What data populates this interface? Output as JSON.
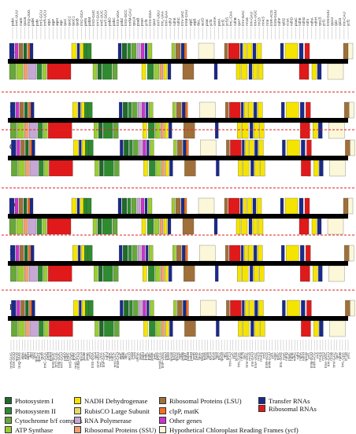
{
  "panels": [
    {
      "letter": "A"
    },
    {
      "letter": "B"
    },
    {
      "letter": "C"
    },
    {
      "letter": "D"
    },
    {
      "letter": "E"
    },
    {
      "letter": "F"
    }
  ],
  "top_gene_labels": [
    "psbA",
    "trnK-UUU",
    "matK",
    "rps16",
    "trnQ-UUG",
    "psbK",
    "psbI",
    "trnS-GCU",
    "trnR-UCU",
    "atpA",
    "atpF",
    "atpH",
    "atpI",
    "rps2",
    "rpoC2",
    "rpoC1",
    "rpoB",
    "trnC-GCA",
    "petN",
    "psbM",
    "trnD-GUC",
    "trnY-GUA",
    "trnE-UUC",
    "trnT-GGU",
    "psbD",
    "psbC",
    "trnS-UGA",
    "psbZ",
    "trnG-GCC",
    "trnfM-CAU",
    "rps14",
    "psaB",
    "psaA",
    "ycf3",
    "trnS-GGA",
    "rps4",
    "trnT-UGU",
    "trnL-UAA",
    "trnF-GAA",
    "ndhJ",
    "ndhK",
    "ndhC",
    "trnV-UAC",
    "trnM-CAU",
    "atpE",
    "atpB",
    "rbcL",
    "accD",
    "psaI",
    "ycf4",
    "cemA",
    "petA",
    "ycf2",
    "ycf15",
    "trnL-CAA",
    "ndhB",
    "rps7",
    "trnV-GAC",
    "rrn16",
    "trnI-GAU",
    "trnA-UGC",
    "rrn23",
    "rrn4.5",
    "rrn5",
    "trnR-ACG",
    "trnN-GUU",
    "ndhF",
    "rpl32",
    "ccsA",
    "ndhD",
    "psaC",
    "ndhE",
    "ndhG",
    "ndhI",
    "ndhA",
    "ndhH",
    "rps15",
    "ycf1",
    "trnN-GUU",
    "rps12",
    "rpl2",
    "rpl23",
    "trnI-CAU",
    "ycf2"
  ],
  "bottom_gene_labels": [
    "trnH-GUG",
    "trnK-UUU",
    "rps16",
    "trnQ-UUG",
    "atpA",
    "atpF",
    "atpH",
    "atpI",
    "rps2",
    "rpoC2",
    "rpoC1",
    "rpoB",
    "trnC-GCA",
    "petN",
    "psbM",
    "trnD-GUC",
    "trnY-GUA",
    "trnE-UUC",
    "trnT-GGU",
    "psbD",
    "psbC",
    "trnS-UGA",
    "psbZ",
    "trnG-GCC",
    "trnfM-CAU",
    "rps14",
    "psaB",
    "psaA",
    "ycf3",
    "trnS-GGA",
    "rps4",
    "trnT-UGU",
    "trnL-UAA",
    "trnF-GAA",
    "ndhJ",
    "ndhK",
    "ndhC",
    "trnV-UAC",
    "trnM-CAU",
    "atpE",
    "atpB",
    "rbcL",
    "accD",
    "psaI",
    "ycf4",
    "cemA",
    "petA",
    "psbJ",
    "psbL",
    "psbF",
    "psbE",
    "petL",
    "petG",
    "trnW-CCA",
    "trnP-UGG",
    "psaJ",
    "rpl33",
    "rps18",
    "rpl20",
    "rps12",
    "clpP",
    "psbB",
    "psbT",
    "psbN",
    "psbH",
    "petB",
    "petD",
    "rpoA",
    "rps11",
    "rpl36",
    "rps8",
    "rpl14",
    "rpl16",
    "rps3",
    "rpl22",
    "rps19",
    "rpl2",
    "rpl23",
    "trnI-CAU",
    "ycf2",
    "ycf15",
    "trnL-CAA",
    "ndhB",
    "rps7",
    "trnV-GAC",
    "rrn16",
    "trnI-GAU",
    "trnA-UGC",
    "rrn23",
    "rrn4.5",
    "rrn5",
    "trnR-ACG",
    "trnN-GUU",
    "ycf1",
    "ndhF",
    "rpl32",
    "trnL-UAG",
    "ccsA",
    "ndhD",
    "psaC",
    "ndhE",
    "ndhG",
    "ndhI",
    "ndhA",
    "ndhH",
    "rps15",
    "ycf1",
    "trnN-GUU",
    "trnR-ACG",
    "rrn5",
    "rrn4.5",
    "rrn23",
    "trnA-UGC",
    "trnI-GAU",
    "rrn16",
    "trnV-GAC",
    "rps7",
    "ndhB",
    "trnL-CAA",
    "ycf15",
    "ycf2"
  ],
  "legend": [
    {
      "label": "Photosystem I",
      "color": "#1e6b2a"
    },
    {
      "label": "Photosystem II",
      "color": "#2f8b2f"
    },
    {
      "label": "Cytochrome b/f complex",
      "color": "#67a83a"
    },
    {
      "label": "ATP Synthase",
      "color": "#9acd32"
    },
    {
      "label": "NADH Dehydrogenase",
      "color": "#f5e400"
    },
    {
      "label": "RubisCO Large Subunit",
      "color": "#e8d96a"
    },
    {
      "label": "RNA Polymerase",
      "color": "#c7a7d6"
    },
    {
      "label": "Ribosomal Proteins (SSU)",
      "color": "#f2a070"
    },
    {
      "label": "Ribosomal Proteins (LSU)",
      "color": "#a0703a"
    },
    {
      "label": "clpP, matK",
      "color": "#f07020"
    },
    {
      "label": "Other genes",
      "color": "#cc33cc"
    },
    {
      "label": "Hypothetical Chloroplast Reading Frames (ycf)",
      "color": "#fbf7d8"
    },
    {
      "label": "Transfer RNAs",
      "color": "#1a2a8a"
    },
    {
      "label": "Ribosomal RNAs",
      "color": "#e01a1a"
    }
  ],
  "colors": {
    "backbone": "#000000",
    "separator": "#e02020"
  }
}
